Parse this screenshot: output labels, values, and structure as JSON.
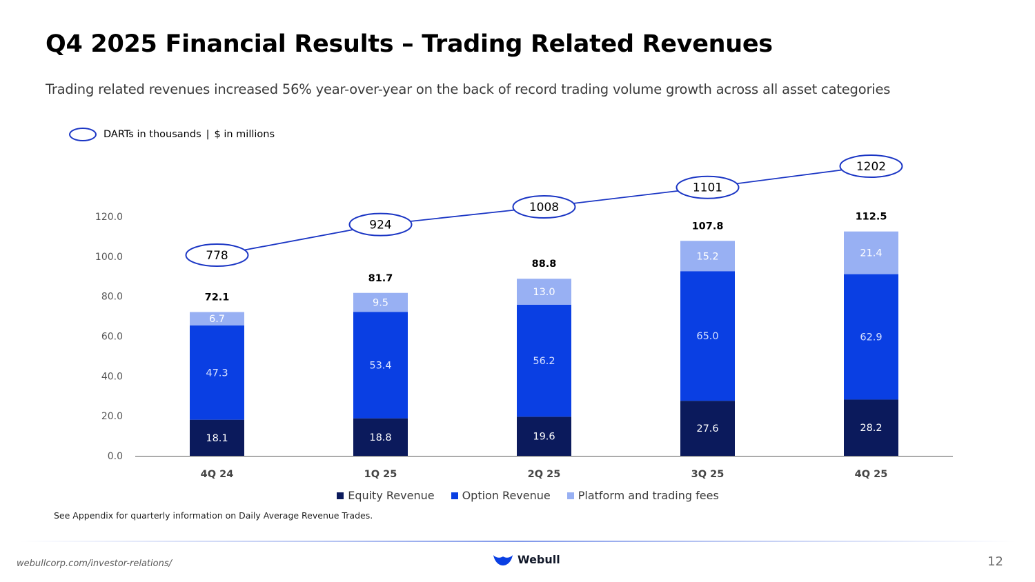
{
  "slide": {
    "title": "Q4 2025 Financial Results – Trading Related Revenues",
    "subtitle": "Trading related revenues increased 56% year-over-year on the back of record trading volume growth across all asset categories",
    "units_darts": "DARTs in thousands",
    "units_sep": "|",
    "units_dollars": "$ in millions",
    "footnote": "See Appendix for quarterly information on Daily Average Revenue Trades.",
    "url": "webullcorp.com/investor-relations/",
    "logo_text": "Webull",
    "page_number": "12"
  },
  "colors": {
    "equity": "#0b1a5c",
    "option": "#0a3fe3",
    "platform": "#98b0f3",
    "line": "#1a35c4",
    "oval_border": "#1a35c4"
  },
  "icons": {
    "logo": "webull-logo-icon"
  },
  "chart_data": {
    "type": "bar",
    "stacked": true,
    "categories": [
      "4Q 24",
      "1Q 25",
      "2Q 25",
      "3Q 25",
      "4Q 25"
    ],
    "series": [
      {
        "name": "Equity Revenue",
        "values": [
          18.1,
          18.8,
          19.6,
          27.6,
          28.2
        ],
        "value_labels": [
          "18.1",
          "18.8",
          "19.6",
          "27.6",
          "28.2"
        ]
      },
      {
        "name": "Option Revenue",
        "values": [
          47.3,
          53.4,
          56.2,
          65.0,
          62.9
        ],
        "value_labels": [
          "47.3",
          "53.4",
          "56.2",
          "65.0",
          "62.9"
        ]
      },
      {
        "name": "Platform and trading fees",
        "values": [
          6.7,
          9.5,
          13.0,
          15.2,
          21.4
        ],
        "value_labels": [
          "6.7",
          "9.5",
          "13.0",
          "15.2",
          "21.4"
        ]
      }
    ],
    "totals": [
      "72.1",
      "81.7",
      "88.8",
      "107.8",
      "112.5"
    ],
    "ylim": [
      0,
      120
    ],
    "yticks": [
      "0.0",
      "20.0",
      "40.0",
      "60.0",
      "80.0",
      "100.0",
      "120.0"
    ],
    "grid": false,
    "legend_position": "bottom",
    "line_series": {
      "type": "line",
      "values": [
        778,
        924,
        1008,
        1101,
        1202
      ],
      "labels": [
        "778",
        "924",
        "1008",
        "1101",
        "1202"
      ],
      "marker": "oval"
    }
  }
}
